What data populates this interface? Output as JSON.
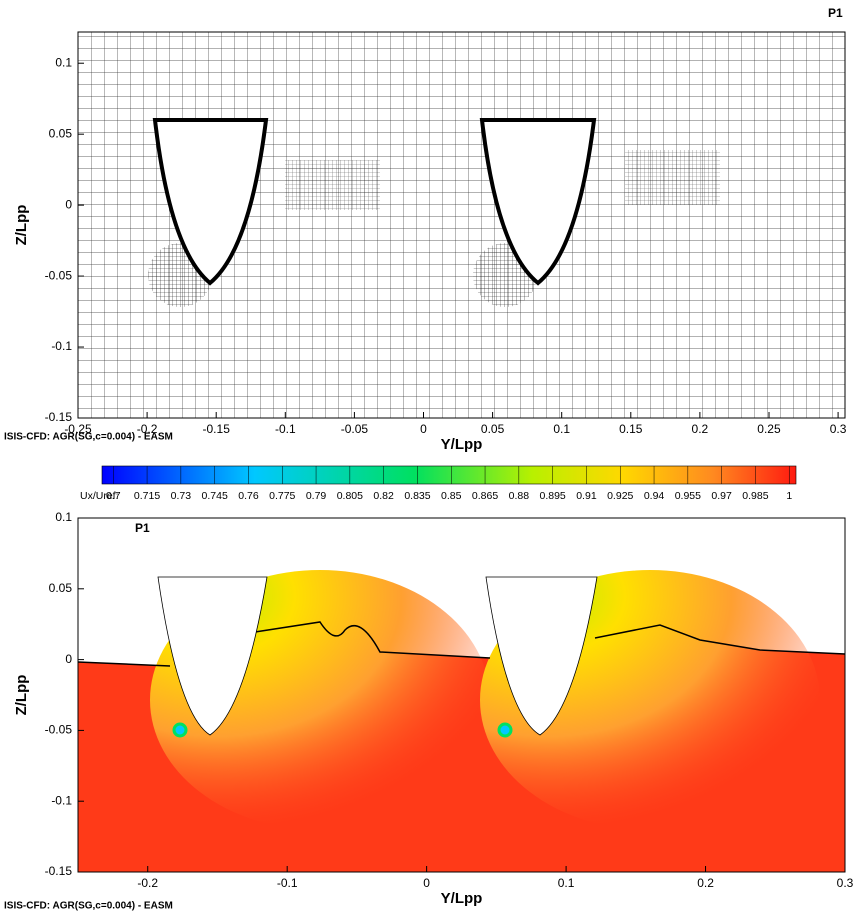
{
  "chart_data": [
    {
      "type": "mesh",
      "tag": "P1",
      "xlabel": "Y/Lpp",
      "ylabel": "Z/Lpp",
      "caption": "ISIS-CFD: AGR(SG,c=0.004) - EASM",
      "xlim": [
        -0.25,
        0.305
      ],
      "ylim": [
        -0.15,
        0.122
      ],
      "xticks": [
        -0.25,
        -0.2,
        -0.15,
        -0.1,
        -0.05,
        0,
        0.05,
        0.1,
        0.15,
        0.2,
        0.25,
        0.3
      ],
      "yticks": [
        -0.15,
        -0.1,
        -0.05,
        0,
        0.05,
        0.1
      ]
    },
    {
      "type": "contour",
      "tag": "P1",
      "xlabel": "Y/Lpp",
      "ylabel": "Z/Lpp",
      "caption": "ISIS-CFD: AGR(SG,c=0.004) - EASM",
      "xlim": [
        -0.25,
        0.3
      ],
      "ylim": [
        -0.15,
        0.1
      ],
      "xticks": [
        -0.2,
        -0.1,
        0,
        0.1,
        0.2,
        0.3
      ],
      "yticks": [
        -0.15,
        -0.1,
        -0.05,
        0,
        0.05,
        0.1
      ],
      "colorbar": {
        "label": "Ux/Uref:",
        "clim": [
          0.695,
          1.003
        ],
        "ticks": [
          0.7,
          0.715,
          0.73,
          0.745,
          0.76,
          0.775,
          0.79,
          0.805,
          0.82,
          0.835,
          0.85,
          0.865,
          0.88,
          0.895,
          0.91,
          0.925,
          0.94,
          0.955,
          0.97,
          0.985,
          1
        ]
      }
    }
  ]
}
